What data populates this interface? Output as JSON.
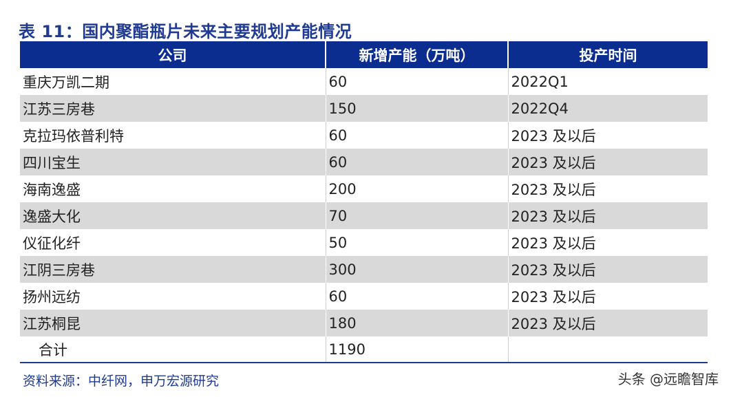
{
  "title": "表 11：国内聚酯瓶片未来主要规划产能情况",
  "table": {
    "headers": [
      "公司",
      "新增产能（万吨）",
      "投产时间"
    ],
    "rows": [
      {
        "company": "重庆万凯二期",
        "capacity": "60",
        "time": "2022Q1"
      },
      {
        "company": "江苏三房巷",
        "capacity": "150",
        "time": "2022Q4"
      },
      {
        "company": "克拉玛依普利特",
        "capacity": "60",
        "time": "2023 及以后"
      },
      {
        "company": "四川宝生",
        "capacity": "60",
        "time": "2023 及以后"
      },
      {
        "company": "海南逸盛",
        "capacity": "200",
        "time": "2023 及以后"
      },
      {
        "company": "逸盛大化",
        "capacity": "70",
        "time": "2023 及以后"
      },
      {
        "company": "仪征化纤",
        "capacity": "50",
        "time": "2023 及以后"
      },
      {
        "company": "江阴三房巷",
        "capacity": "300",
        "time": "2023 及以后"
      },
      {
        "company": "扬州远纺",
        "capacity": "60",
        "time": "2023 及以后"
      },
      {
        "company": "江苏桐昆",
        "capacity": "180",
        "time": "2023 及以后"
      }
    ],
    "total": {
      "label": "合计",
      "capacity": "1190",
      "time": ""
    }
  },
  "source": "资料来源：中纤网，申万宏源研究",
  "watermark": "头条 @远瞻智库",
  "colors": {
    "header_bg": "#0b2d8f",
    "title": "#1f3a93",
    "row_shade": "#d9d9d9"
  }
}
